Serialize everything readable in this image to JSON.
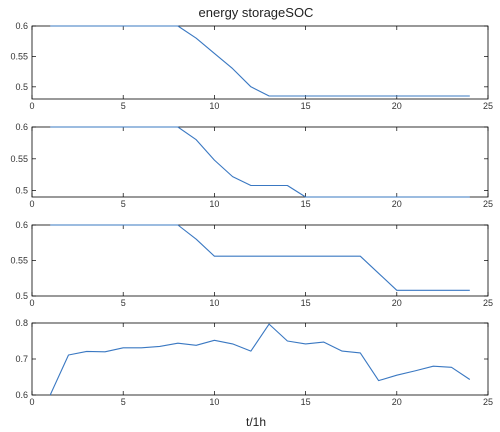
{
  "title": "energy storageSOC",
  "xlabel": "t/1h",
  "line_color": "#3a78c2",
  "chart_data": [
    {
      "type": "line",
      "xlim": [
        0,
        25
      ],
      "ylim": [
        0.48,
        0.6
      ],
      "xticks": [
        0,
        5,
        10,
        15,
        20,
        25
      ],
      "yticks": [
        0.5,
        0.55,
        0.6
      ],
      "ytick_labels": [
        "0.5",
        "0.55",
        "0.6"
      ],
      "x": [
        1,
        8,
        9,
        10,
        11,
        12,
        13,
        14,
        15,
        16,
        17,
        18,
        19,
        20,
        21,
        22,
        23,
        24
      ],
      "y": [
        0.6,
        0.6,
        0.58,
        0.555,
        0.53,
        0.5,
        0.485,
        0.485,
        0.485,
        0.485,
        0.485,
        0.485,
        0.485,
        0.485,
        0.485,
        0.485,
        0.485,
        0.485
      ]
    },
    {
      "type": "line",
      "xlim": [
        0,
        25
      ],
      "ylim": [
        0.49,
        0.6
      ],
      "xticks": [
        0,
        5,
        10,
        15,
        20,
        25
      ],
      "yticks": [
        0.5,
        0.55,
        0.6
      ],
      "ytick_labels": [
        "0.5",
        "0.55",
        "0.6"
      ],
      "x": [
        1,
        8,
        9,
        10,
        11,
        12,
        13,
        14,
        15,
        16,
        17,
        18,
        19,
        20,
        21,
        22,
        23,
        24
      ],
      "y": [
        0.6,
        0.6,
        0.58,
        0.548,
        0.522,
        0.508,
        0.508,
        0.508,
        0.49,
        0.49,
        0.49,
        0.49,
        0.49,
        0.49,
        0.49,
        0.49,
        0.49,
        0.49
      ]
    },
    {
      "type": "line",
      "xlim": [
        0,
        25
      ],
      "ylim": [
        0.5,
        0.6
      ],
      "xticks": [
        0,
        5,
        10,
        15,
        20,
        25
      ],
      "yticks": [
        0.5,
        0.55,
        0.6
      ],
      "ytick_labels": [
        "0.5",
        "0.55",
        "0.6"
      ],
      "x": [
        1,
        8,
        9,
        10,
        11,
        12,
        13,
        14,
        15,
        16,
        17,
        18,
        19,
        20,
        21,
        22,
        23,
        24
      ],
      "y": [
        0.6,
        0.6,
        0.58,
        0.556,
        0.556,
        0.556,
        0.556,
        0.556,
        0.556,
        0.556,
        0.556,
        0.556,
        0.532,
        0.508,
        0.508,
        0.508,
        0.508,
        0.508
      ]
    },
    {
      "type": "line",
      "xlim": [
        0,
        25
      ],
      "ylim": [
        0.6,
        0.8
      ],
      "xticks": [
        0,
        5,
        10,
        15,
        20,
        25
      ],
      "yticks": [
        0.6,
        0.7,
        0.8
      ],
      "ytick_labels": [
        "0.6",
        "0.7",
        "0.8"
      ],
      "x": [
        1,
        2,
        3,
        4,
        5,
        6,
        7,
        8,
        9,
        10,
        11,
        12,
        13,
        14,
        15,
        16,
        17,
        18,
        19,
        20,
        21,
        22,
        23,
        24
      ],
      "y": [
        0.6,
        0.711,
        0.721,
        0.72,
        0.731,
        0.731,
        0.735,
        0.744,
        0.738,
        0.752,
        0.742,
        0.722,
        0.797,
        0.75,
        0.742,
        0.747,
        0.722,
        0.717,
        0.64,
        0.655,
        0.667,
        0.68,
        0.677,
        0.643
      ]
    }
  ]
}
